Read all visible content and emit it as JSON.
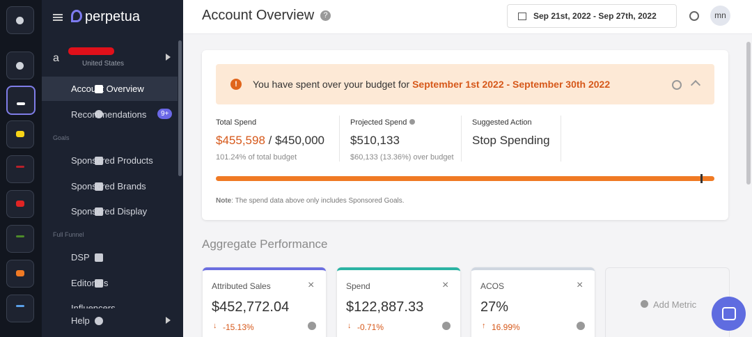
{
  "sidebar": {
    "brand": "perpetua",
    "account_country": "United States",
    "nav": [
      {
        "label": "Account Overview"
      },
      {
        "label": "Recommendations",
        "badge": "9+"
      }
    ],
    "goals": {
      "heading": "Goals",
      "items": [
        "Sponsored Products",
        "Sponsored Brands",
        "Sponsored Display"
      ]
    },
    "full_funnel": {
      "heading": "Full Funnel",
      "items": [
        "DSP",
        "Editorials",
        "Influencers"
      ]
    },
    "help": "Help"
  },
  "header": {
    "title": "Account Overview",
    "date_range": "Sep 21st, 2022 - Sep 27th, 2022",
    "avatar": "mn"
  },
  "budget": {
    "alert": {
      "text": "You have spent over your budget for",
      "period": "September 1st 2022 - September 30th 2022"
    },
    "total_spend": {
      "label": "Total Spend",
      "value": "$455,598",
      "budget": "/ $450,000",
      "sub": "101.24% of total budget"
    },
    "projected_spend": {
      "label": "Projected Spend",
      "value": "$510,133",
      "sub": "$60,133 (13.36%) over budget"
    },
    "suggested_action": {
      "label": "Suggested Action",
      "value": "Stop Spending"
    },
    "note": {
      "label": "Note",
      "text": ": The spend data above only includes Sponsored Goals."
    }
  },
  "aggregate": {
    "title": "Aggregate Performance",
    "cards": [
      {
        "title": "Attributed Sales",
        "value": "$452,772.04",
        "change": "-15.13%"
      },
      {
        "title": "Spend",
        "value": "$122,887.33",
        "change": "-0.71%"
      },
      {
        "title": "ACOS",
        "value": "27%",
        "change": "16.99%"
      }
    ],
    "add_metric": "Add Metric"
  }
}
